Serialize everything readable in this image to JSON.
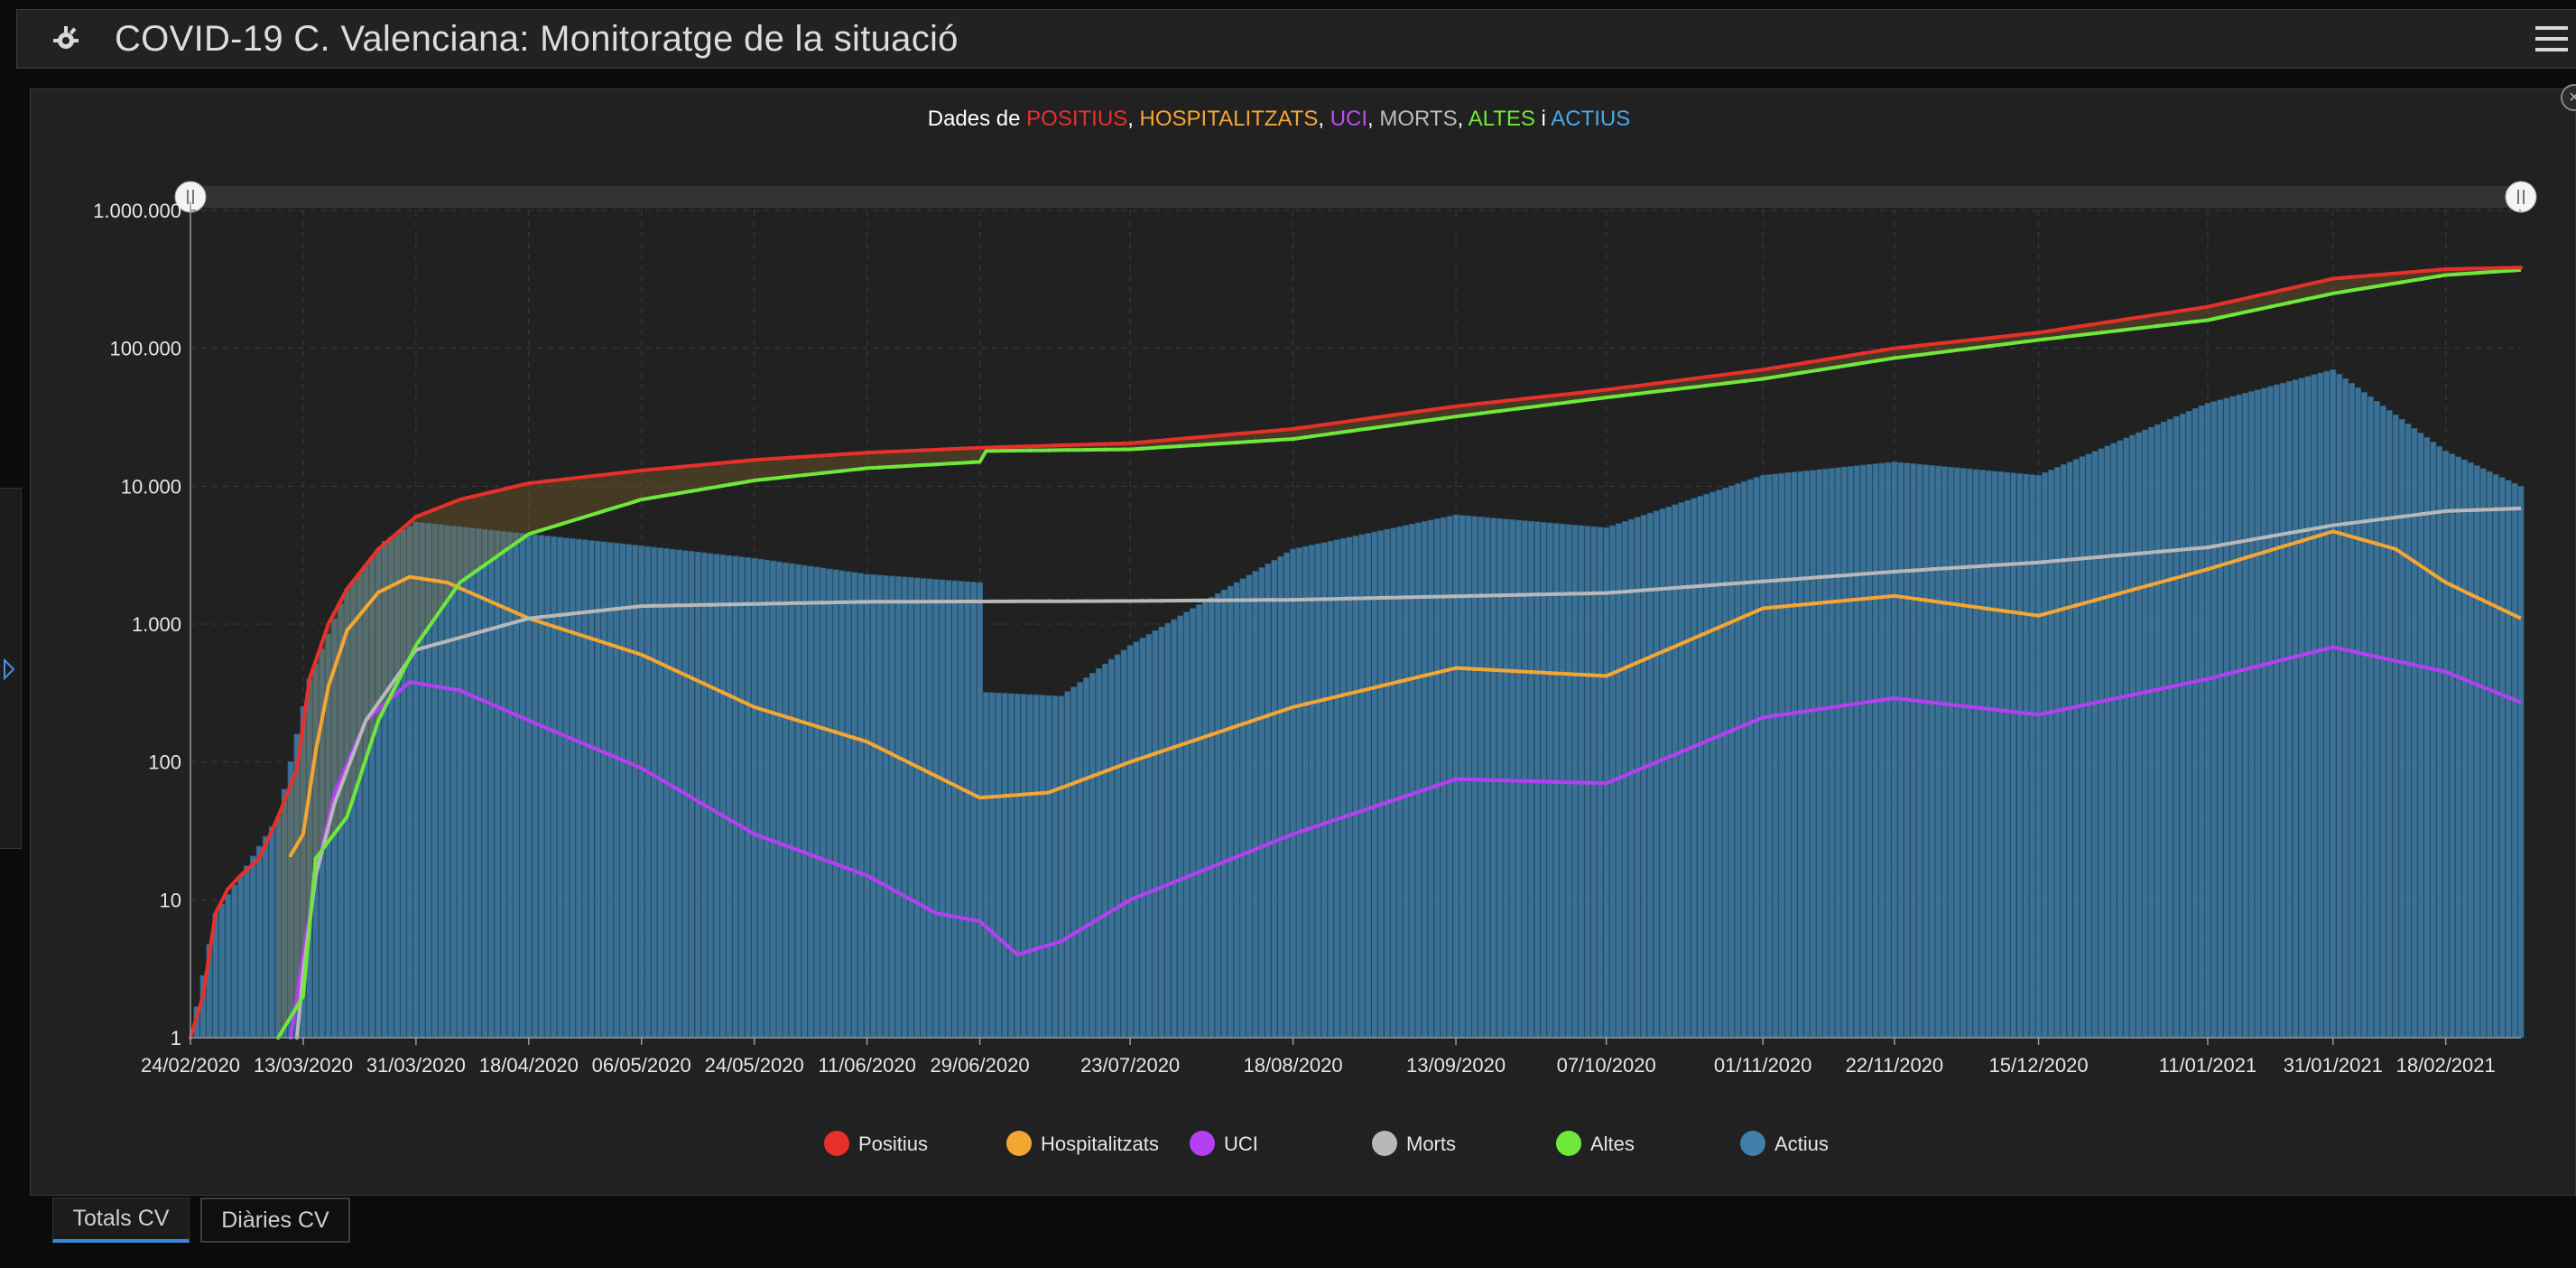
{
  "app": {
    "title": "COVID-19 C. Valenciana: Monitoratge de la situació",
    "icon": "virus-icon",
    "menu_icon": "hamburger-menu-icon"
  },
  "tabs": [
    {
      "label": "Totals CV",
      "active": true
    },
    {
      "label": "Diàries CV",
      "active": false
    }
  ],
  "chart_data": {
    "type": "line",
    "title_parts": [
      {
        "text": "Dades de ",
        "color": "#ffffff"
      },
      {
        "text": "POSITIUS",
        "color": "#e8302b"
      },
      {
        "text": ", ",
        "color": "#ffffff"
      },
      {
        "text": "HOSPITALITZATS",
        "color": "#f5a632"
      },
      {
        "text": ", ",
        "color": "#ffffff"
      },
      {
        "text": "UCI",
        "color": "#c04cf0"
      },
      {
        "text": ", ",
        "color": "#ffffff"
      },
      {
        "text": "MORTS",
        "color": "#bbbbbb"
      },
      {
        "text": ", ",
        "color": "#ffffff"
      },
      {
        "text": "ALTES",
        "color": "#6fe83c"
      },
      {
        "text": " i ",
        "color": "#ffffff"
      },
      {
        "text": "ACTIUS",
        "color": "#4aa8e8"
      }
    ],
    "yscale": "log",
    "ylim": [
      1,
      1000000
    ],
    "yticks": [
      "1",
      "10",
      "100",
      "1.000",
      "10.000",
      "100.000",
      "1.000.000"
    ],
    "xlim": [
      "2020-02-24",
      "2021-03-02"
    ],
    "xticks": [
      "24/02/2020",
      "13/03/2020",
      "31/03/2020",
      "18/04/2020",
      "06/05/2020",
      "24/05/2020",
      "11/06/2020",
      "29/06/2020",
      "23/07/2020",
      "18/08/2020",
      "13/09/2020",
      "07/10/2020",
      "01/11/2020",
      "22/11/2020",
      "15/12/2020",
      "11/01/2021",
      "31/01/2021",
      "18/02/2021"
    ],
    "grid": true,
    "legend_position": "bottom",
    "legend": [
      {
        "name": "Positius",
        "color": "#e8302b"
      },
      {
        "name": "Hospitalitzats",
        "color": "#f5a632"
      },
      {
        "name": "UCI",
        "color": "#b53ff2"
      },
      {
        "name": "Morts",
        "color": "#b8b8b8"
      },
      {
        "name": "Altes",
        "color": "#6fe83c"
      },
      {
        "name": "Actius",
        "color": "#3f7faa"
      }
    ],
    "series": [
      {
        "name": "Positius",
        "color": "#e8302b",
        "style": "line",
        "points": [
          [
            "2020-02-24",
            1
          ],
          [
            "2020-02-26",
            2
          ],
          [
            "2020-02-28",
            8
          ],
          [
            "2020-03-01",
            12
          ],
          [
            "2020-03-03",
            15
          ],
          [
            "2020-03-06",
            20
          ],
          [
            "2020-03-09",
            40
          ],
          [
            "2020-03-12",
            90
          ],
          [
            "2020-03-14",
            400
          ],
          [
            "2020-03-17",
            1000
          ],
          [
            "2020-03-20",
            1800
          ],
          [
            "2020-03-25",
            3500
          ],
          [
            "2020-03-31",
            6000
          ],
          [
            "2020-04-07",
            8000
          ],
          [
            "2020-04-18",
            10500
          ],
          [
            "2020-05-06",
            13000
          ],
          [
            "2020-05-24",
            15500
          ],
          [
            "2020-06-11",
            17500
          ],
          [
            "2020-06-29",
            19000
          ],
          [
            "2020-07-23",
            20500
          ],
          [
            "2020-08-18",
            26000
          ],
          [
            "2020-09-13",
            38000
          ],
          [
            "2020-10-07",
            50000
          ],
          [
            "2020-11-01",
            70000
          ],
          [
            "2020-11-22",
            100000
          ],
          [
            "2020-12-15",
            130000
          ],
          [
            "2021-01-11",
            200000
          ],
          [
            "2021-01-31",
            320000
          ],
          [
            "2021-02-18",
            375000
          ],
          [
            "2021-03-02",
            385000
          ]
        ]
      },
      {
        "name": "Hospitalitzats",
        "color": "#f5a632",
        "style": "line",
        "points": [
          [
            "2020-03-11",
            21
          ],
          [
            "2020-03-13",
            30
          ],
          [
            "2020-03-15",
            120
          ],
          [
            "2020-03-17",
            350
          ],
          [
            "2020-03-20",
            900
          ],
          [
            "2020-03-25",
            1700
          ],
          [
            "2020-03-30",
            2200
          ],
          [
            "2020-04-05",
            2000
          ],
          [
            "2020-04-18",
            1100
          ],
          [
            "2020-05-06",
            600
          ],
          [
            "2020-05-24",
            250
          ],
          [
            "2020-06-11",
            140
          ],
          [
            "2020-06-29",
            55
          ],
          [
            "2020-07-10",
            60
          ],
          [
            "2020-07-23",
            100
          ],
          [
            "2020-08-18",
            250
          ],
          [
            "2020-09-13",
            480
          ],
          [
            "2020-10-07",
            420
          ],
          [
            "2020-11-01",
            1300
          ],
          [
            "2020-11-22",
            1600
          ],
          [
            "2020-12-15",
            1150
          ],
          [
            "2021-01-11",
            2500
          ],
          [
            "2021-01-31",
            4700
          ],
          [
            "2021-02-10",
            3500
          ],
          [
            "2021-02-18",
            2000
          ],
          [
            "2021-03-02",
            1100
          ]
        ]
      },
      {
        "name": "UCI",
        "color": "#b53ff2",
        "style": "line",
        "points": [
          [
            "2020-03-11",
            1
          ],
          [
            "2020-03-13",
            4
          ],
          [
            "2020-03-15",
            15
          ],
          [
            "2020-03-18",
            60
          ],
          [
            "2020-03-23",
            200
          ],
          [
            "2020-03-30",
            380
          ],
          [
            "2020-04-07",
            330
          ],
          [
            "2020-04-18",
            200
          ],
          [
            "2020-05-06",
            90
          ],
          [
            "2020-05-24",
            30
          ],
          [
            "2020-06-11",
            15
          ],
          [
            "2020-06-22",
            8
          ],
          [
            "2020-06-29",
            7
          ],
          [
            "2020-07-05",
            4
          ],
          [
            "2020-07-12",
            5
          ],
          [
            "2020-07-23",
            10
          ],
          [
            "2020-08-18",
            30
          ],
          [
            "2020-09-13",
            75
          ],
          [
            "2020-10-07",
            70
          ],
          [
            "2020-11-01",
            210
          ],
          [
            "2020-11-22",
            290
          ],
          [
            "2020-12-15",
            220
          ],
          [
            "2021-01-11",
            400
          ],
          [
            "2021-01-31",
            680
          ],
          [
            "2021-02-18",
            450
          ],
          [
            "2021-03-02",
            270
          ]
        ]
      },
      {
        "name": "Morts",
        "color": "#b8b8b8",
        "style": "line",
        "points": [
          [
            "2020-03-12",
            1
          ],
          [
            "2020-03-13",
            3
          ],
          [
            "2020-03-15",
            15
          ],
          [
            "2020-03-18",
            50
          ],
          [
            "2020-03-23",
            200
          ],
          [
            "2020-03-31",
            650
          ],
          [
            "2020-04-18",
            1100
          ],
          [
            "2020-05-06",
            1350
          ],
          [
            "2020-06-11",
            1450
          ],
          [
            "2020-07-23",
            1470
          ],
          [
            "2020-08-18",
            1500
          ],
          [
            "2020-10-07",
            1680
          ],
          [
            "2020-11-22",
            2400
          ],
          [
            "2020-12-15",
            2800
          ],
          [
            "2021-01-11",
            3600
          ],
          [
            "2021-01-31",
            5200
          ],
          [
            "2021-02-18",
            6600
          ],
          [
            "2021-03-02",
            6900
          ]
        ]
      },
      {
        "name": "Altes",
        "color": "#6fe83c",
        "style": "line",
        "points": [
          [
            "2020-03-09",
            1
          ],
          [
            "2020-03-13",
            2
          ],
          [
            "2020-03-15",
            20
          ],
          [
            "2020-03-20",
            40
          ],
          [
            "2020-03-25",
            200
          ],
          [
            "2020-03-31",
            700
          ],
          [
            "2020-04-07",
            2000
          ],
          [
            "2020-04-18",
            4500
          ],
          [
            "2020-05-06",
            8000
          ],
          [
            "2020-05-24",
            11000
          ],
          [
            "2020-06-11",
            13500
          ],
          [
            "2020-06-29",
            15000
          ],
          [
            "2020-06-30",
            18000
          ],
          [
            "2020-07-23",
            18500
          ],
          [
            "2020-08-18",
            22000
          ],
          [
            "2020-09-13",
            32000
          ],
          [
            "2020-10-07",
            44000
          ],
          [
            "2020-11-01",
            60000
          ],
          [
            "2020-11-22",
            85000
          ],
          [
            "2020-12-15",
            115000
          ],
          [
            "2021-01-11",
            160000
          ],
          [
            "2021-01-31",
            250000
          ],
          [
            "2021-02-18",
            340000
          ],
          [
            "2021-03-02",
            370000
          ]
        ]
      },
      {
        "name": "Actius",
        "color": "#3f7faa",
        "style": "bar",
        "points": [
          [
            "2020-02-24",
            1
          ],
          [
            "2020-02-28",
            8
          ],
          [
            "2020-03-03",
            15
          ],
          [
            "2020-03-09",
            40
          ],
          [
            "2020-03-14",
            400
          ],
          [
            "2020-03-20",
            1800
          ],
          [
            "2020-03-26",
            4000
          ],
          [
            "2020-03-31",
            5500
          ],
          [
            "2020-04-18",
            4500
          ],
          [
            "2020-05-06",
            3700
          ],
          [
            "2020-05-24",
            3000
          ],
          [
            "2020-06-11",
            2300
          ],
          [
            "2020-06-29",
            2000
          ],
          [
            "2020-06-30",
            320
          ],
          [
            "2020-07-12",
            300
          ],
          [
            "2020-07-23",
            700
          ],
          [
            "2020-08-18",
            3500
          ],
          [
            "2020-09-13",
            6200
          ],
          [
            "2020-10-07",
            5000
          ],
          [
            "2020-11-01",
            12000
          ],
          [
            "2020-11-22",
            15000
          ],
          [
            "2020-12-15",
            12000
          ],
          [
            "2021-01-11",
            40000
          ],
          [
            "2021-01-31",
            70000
          ],
          [
            "2021-02-18",
            18000
          ],
          [
            "2021-03-02",
            10000
          ]
        ]
      }
    ]
  }
}
